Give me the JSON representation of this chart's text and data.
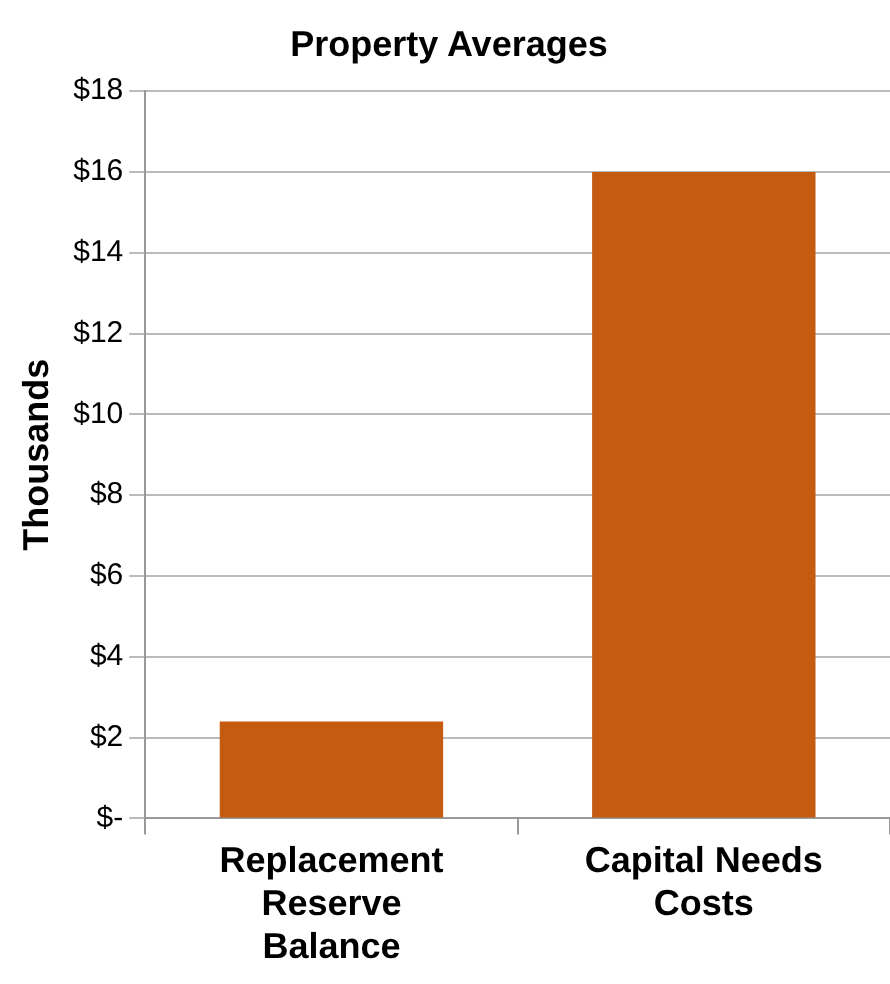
{
  "chart_data": {
    "type": "bar",
    "title": "Property Averages",
    "ylabel": "Thousands",
    "categories": [
      "Replacement Reserve Balance",
      "Capital Needs Costs"
    ],
    "values": [
      2.4,
      16
    ],
    "color": "#c55a11",
    "ylim": [
      0,
      18
    ],
    "yticks": [
      {
        "value": 0,
        "label": "$-"
      },
      {
        "value": 2,
        "label": "$2"
      },
      {
        "value": 4,
        "label": "$4"
      },
      {
        "value": 6,
        "label": "$6"
      },
      {
        "value": 8,
        "label": "$8"
      },
      {
        "value": 10,
        "label": "$10"
      },
      {
        "value": 12,
        "label": "$12"
      },
      {
        "value": 14,
        "label": "$14"
      },
      {
        "value": 16,
        "label": "$16"
      },
      {
        "value": 18,
        "label": "$18"
      }
    ],
    "grid": "y",
    "legend": false
  }
}
